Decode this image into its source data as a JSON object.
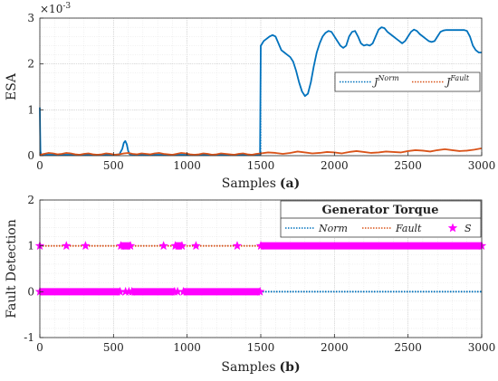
{
  "chart_data": [
    {
      "type": "line",
      "xlabel": "Samples",
      "panel_tag": "(a)",
      "ylabel": "ESA",
      "y_exponent": "×10",
      "y_exponent_power": "-3",
      "xlim": [
        0,
        3000
      ],
      "ylim": [
        0,
        3
      ],
      "x_ticks": [
        "0",
        "500",
        "1000",
        "1500",
        "2000",
        "2500",
        "3000"
      ],
      "y_ticks": [
        "0",
        "1",
        "2",
        "3"
      ],
      "grid": true,
      "legend_placement": "right-middle",
      "legend": [
        {
          "base": "J",
          "sup": "Norm",
          "color": "#0072BD",
          "style": "dotted"
        },
        {
          "base": "J",
          "sup": "Fault",
          "color": "#D95319",
          "style": "dotted"
        }
      ],
      "series": [
        {
          "key": "norm",
          "color": "#0072BD",
          "x": [
            0,
            2,
            4,
            8,
            15,
            50,
            100,
            200,
            300,
            400,
            500,
            540,
            560,
            570,
            580,
            590,
            600,
            610,
            640,
            700,
            800,
            900,
            1000,
            1100,
            1200,
            1300,
            1400,
            1495,
            1500,
            1505,
            1520,
            1540,
            1560,
            1580,
            1600,
            1620,
            1640,
            1660,
            1680,
            1700,
            1720,
            1740,
            1760,
            1780,
            1800,
            1820,
            1840,
            1860,
            1880,
            1900,
            1920,
            1940,
            1960,
            1980,
            2000,
            2020,
            2040,
            2060,
            2080,
            2100,
            2120,
            2140,
            2160,
            2180,
            2200,
            2220,
            2240,
            2260,
            2280,
            2300,
            2320,
            2340,
            2360,
            2380,
            2400,
            2420,
            2440,
            2460,
            2480,
            2500,
            2520,
            2540,
            2560,
            2580,
            2600,
            2620,
            2640,
            2660,
            2680,
            2700,
            2720,
            2740,
            2760,
            2780,
            2800,
            2820,
            2840,
            2860,
            2880,
            2900,
            2920,
            2940,
            2960,
            2980,
            3000
          ],
          "y": [
            1.05,
            0.5,
            0.1,
            0.03,
            0.02,
            0.02,
            0.02,
            0.02,
            0.02,
            0.02,
            0.02,
            0.03,
            0.15,
            0.28,
            0.32,
            0.25,
            0.1,
            0.03,
            0.02,
            0.02,
            0.02,
            0.02,
            0.02,
            0.02,
            0.02,
            0.02,
            0.02,
            0.02,
            2.4,
            2.42,
            2.5,
            2.55,
            2.6,
            2.63,
            2.6,
            2.45,
            2.3,
            2.25,
            2.2,
            2.15,
            2.05,
            1.85,
            1.6,
            1.4,
            1.3,
            1.35,
            1.6,
            1.95,
            2.25,
            2.45,
            2.6,
            2.68,
            2.72,
            2.7,
            2.6,
            2.5,
            2.4,
            2.35,
            2.4,
            2.6,
            2.7,
            2.72,
            2.6,
            2.45,
            2.4,
            2.42,
            2.4,
            2.45,
            2.6,
            2.75,
            2.8,
            2.78,
            2.7,
            2.65,
            2.6,
            2.55,
            2.5,
            2.45,
            2.5,
            2.6,
            2.7,
            2.75,
            2.72,
            2.65,
            2.6,
            2.55,
            2.5,
            2.48,
            2.5,
            2.6,
            2.7,
            2.73,
            2.74,
            2.74,
            2.74,
            2.74,
            2.74,
            2.74,
            2.74,
            2.72,
            2.6,
            2.4,
            2.3,
            2.25,
            2.25
          ]
        },
        {
          "key": "fault",
          "color": "#D95319",
          "x": [
            0,
            30,
            60,
            90,
            120,
            150,
            180,
            210,
            240,
            270,
            300,
            330,
            360,
            390,
            420,
            450,
            480,
            510,
            540,
            570,
            600,
            630,
            660,
            690,
            720,
            750,
            780,
            810,
            840,
            870,
            900,
            930,
            960,
            990,
            1020,
            1050,
            1080,
            1110,
            1140,
            1170,
            1200,
            1230,
            1260,
            1290,
            1320,
            1350,
            1380,
            1410,
            1440,
            1470,
            1500,
            1550,
            1600,
            1650,
            1700,
            1750,
            1800,
            1850,
            1900,
            1950,
            2000,
            2050,
            2100,
            2150,
            2200,
            2250,
            2300,
            2350,
            2400,
            2450,
            2500,
            2550,
            2600,
            2650,
            2700,
            2750,
            2800,
            2850,
            2900,
            2950,
            3000
          ],
          "y": [
            0.02,
            0.04,
            0.06,
            0.05,
            0.03,
            0.04,
            0.06,
            0.05,
            0.03,
            0.02,
            0.04,
            0.05,
            0.03,
            0.02,
            0.03,
            0.05,
            0.04,
            0.02,
            0.03,
            0.05,
            0.06,
            0.04,
            0.03,
            0.05,
            0.04,
            0.03,
            0.05,
            0.06,
            0.04,
            0.03,
            0.02,
            0.04,
            0.06,
            0.05,
            0.03,
            0.02,
            0.03,
            0.05,
            0.04,
            0.02,
            0.03,
            0.05,
            0.04,
            0.03,
            0.02,
            0.04,
            0.05,
            0.03,
            0.02,
            0.04,
            0.05,
            0.07,
            0.06,
            0.04,
            0.06,
            0.09,
            0.07,
            0.05,
            0.06,
            0.08,
            0.07,
            0.05,
            0.08,
            0.1,
            0.08,
            0.06,
            0.07,
            0.09,
            0.08,
            0.07,
            0.1,
            0.12,
            0.11,
            0.09,
            0.12,
            0.14,
            0.12,
            0.1,
            0.11,
            0.13,
            0.16
          ]
        }
      ]
    },
    {
      "type": "line",
      "xlabel": "Samples",
      "panel_tag": "(b)",
      "ylabel": "Fault Detection",
      "xlim": [
        0,
        3000
      ],
      "ylim": [
        -1,
        2
      ],
      "x_ticks": [
        "0",
        "500",
        "1000",
        "1500",
        "2000",
        "2500",
        "3000"
      ],
      "y_ticks": [
        "-1",
        "0",
        "1",
        "2"
      ],
      "grid": true,
      "legend_placement": "top-right",
      "legend_title": "Generator Torque",
      "legend": [
        {
          "label": "Norm",
          "color": "#0072BD",
          "style": "dotted"
        },
        {
          "label": "Fault",
          "color": "#D95319",
          "style": "dotted"
        },
        {
          "label": "S",
          "color": "#FF00FF",
          "style": "star"
        }
      ],
      "series": [
        {
          "key": "norm",
          "color": "#0072BD",
          "x": [
            0,
            3000
          ],
          "y": [
            0,
            0
          ]
        },
        {
          "key": "fault",
          "color": "#D95319",
          "x": [
            0,
            3000
          ],
          "y": [
            1,
            1
          ]
        },
        {
          "key": "s",
          "color": "#FF00FF",
          "segments": [
            {
              "start": 0,
              "end": 545,
              "y": 0
            },
            {
              "start": 550,
              "end": 615,
              "y": 1
            },
            {
              "start": 625,
              "end": 915,
              "y": 0
            },
            {
              "start": 920,
              "end": 965,
              "y": 1
            },
            {
              "start": 975,
              "end": 1495,
              "y": 0
            },
            {
              "start": 1500,
              "end": 3000,
              "y": 1
            }
          ],
          "isolated": [
            {
              "x": 0,
              "y": 1
            },
            {
              "x": 180,
              "y": 1
            },
            {
              "x": 310,
              "y": 1
            },
            {
              "x": 840,
              "y": 1
            },
            {
              "x": 1060,
              "y": 1
            },
            {
              "x": 1340,
              "y": 1
            },
            {
              "x": 582,
              "y": 0
            },
            {
              "x": 605,
              "y": 0
            },
            {
              "x": 935,
              "y": 0
            }
          ]
        }
      ]
    }
  ]
}
